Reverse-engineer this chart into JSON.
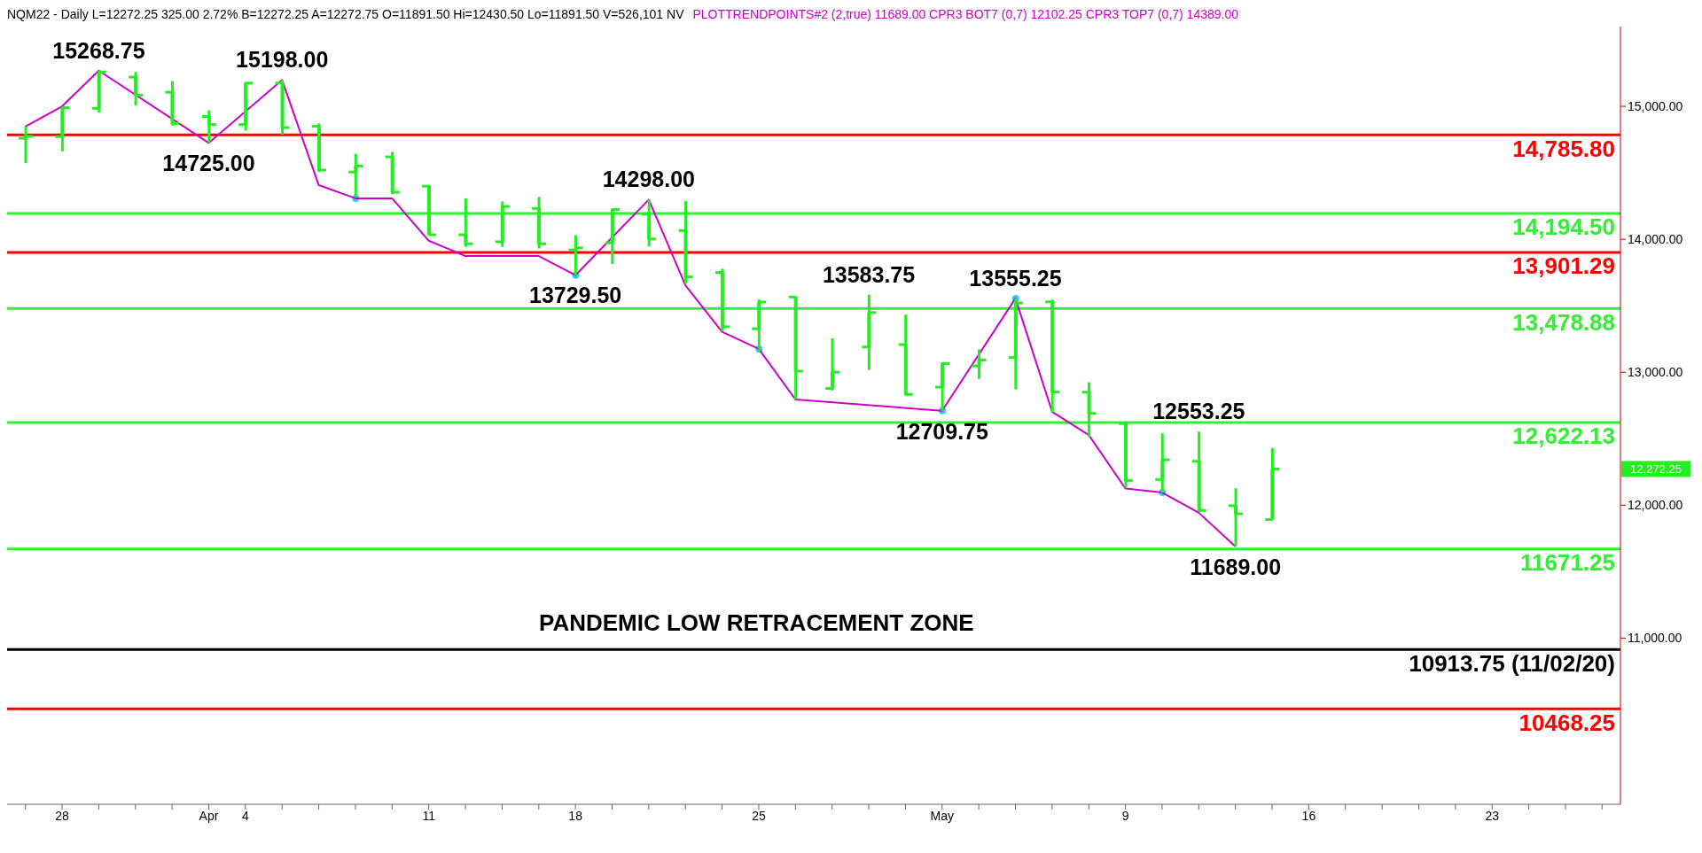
{
  "chart_data": {
    "type": "candlestick",
    "title": "NQM22 - Daily L=12272.25 325.00 2.72% B=12272.25 A=12272.75 O=11891.50 Hi=12430.50 Lo=11891.50 V=526,101 NV",
    "subtitle": "PLOTTRENDPOINTS#2 (2,true) 11689.00 CPR3 BOT7 (0,7) 12102.25 CPR3 TOP7 (0,7) 14389.00",
    "categories": [
      null,
      "28",
      null,
      null,
      null,
      "Apr",
      "4",
      null,
      null,
      null,
      null,
      "11",
      null,
      null,
      null,
      "18",
      null,
      null,
      null,
      null,
      "25",
      null,
      null,
      null,
      null,
      "May",
      null,
      null,
      null,
      null,
      "9",
      null,
      null,
      null,
      null,
      "16",
      null,
      null,
      null,
      null,
      "23",
      null,
      null,
      null
    ],
    "color": "#22ee22",
    "ohlc": [
      [
        14760,
        14848,
        14574,
        14775
      ],
      [
        14772,
        14997,
        14662,
        14990
      ],
      [
        14985,
        15268.75,
        14954,
        15259
      ],
      [
        15220,
        15259,
        15008,
        15084
      ],
      [
        15106,
        15190,
        14856,
        14871
      ],
      [
        14924,
        14970,
        14725,
        14863
      ],
      [
        14863,
        15183,
        14817,
        15175
      ],
      [
        15175,
        15198,
        14787,
        14840
      ],
      [
        14850,
        14871,
        14506,
        14521
      ],
      [
        14506,
        14643,
        14323,
        14551
      ],
      [
        14620,
        14658,
        14338,
        14354
      ],
      [
        14400,
        14407,
        14027,
        14034
      ],
      [
        14034,
        14308,
        13943,
        13966
      ],
      [
        13981,
        14285,
        13943,
        14247
      ],
      [
        14232,
        14319,
        13931,
        13966
      ],
      [
        13920,
        14030,
        13729.5,
        13936
      ],
      [
        13973,
        14232,
        13814,
        14224
      ],
      [
        14188,
        14298,
        13946,
        14002
      ],
      [
        14065,
        14288,
        13669,
        13717
      ],
      [
        13750,
        13778,
        13307,
        13342
      ],
      [
        13327,
        13547,
        13155,
        13528
      ],
      [
        13566,
        13570,
        12798,
        13008
      ],
      [
        12878,
        13255,
        12863,
        13000
      ],
      [
        13190,
        13583.75,
        13018,
        13449
      ],
      [
        13208,
        13433,
        12825,
        12833
      ],
      [
        12888,
        13076,
        12709.75,
        13065
      ],
      [
        13048,
        13172,
        12950,
        13092
      ],
      [
        13111,
        13555.25,
        12871,
        13521
      ],
      [
        13529,
        13545,
        12698,
        12851
      ],
      [
        12850,
        12924,
        12513,
        12690
      ],
      [
        12614,
        12627,
        12133,
        12186
      ],
      [
        12193,
        12540,
        12095,
        12341
      ],
      [
        12330,
        12553.25,
        11950,
        11960
      ],
      [
        11996,
        12127,
        11689,
        11935
      ],
      [
        11891.5,
        12430.5,
        11891.5,
        12272.25
      ],
      null,
      null,
      null,
      null,
      null,
      null,
      null,
      null,
      null
    ],
    "series": [
      {
        "type": "line",
        "color": "#cc00cc",
        "values": [
          14848,
          15000,
          15268.75,
          null,
          null,
          14725,
          null,
          15198,
          14407,
          14308,
          14308,
          13989,
          13874,
          null,
          13874,
          13729.5,
          null,
          14298,
          13654,
          13304,
          13175,
          12795,
          null,
          null,
          null,
          12709.75,
          null,
          13555.25,
          12703,
          12528,
          12125,
          12095,
          11943,
          11689,
          null,
          null,
          null,
          null,
          null,
          null,
          null,
          null,
          null,
          null
        ]
      },
      {
        "type": "scatter",
        "color": "#33ccff",
        "values": [
          null,
          null,
          null,
          null,
          null,
          null,
          null,
          null,
          null,
          14308,
          null,
          null,
          null,
          null,
          null,
          13729.5,
          null,
          null,
          null,
          null,
          13175,
          null,
          null,
          null,
          null,
          12709.75,
          null,
          13555.25,
          null,
          null,
          null,
          12095,
          null,
          null,
          null,
          null,
          null,
          null,
          null,
          null,
          null,
          null,
          null,
          null
        ]
      }
    ],
    "ylim": [
      9750,
      15600
    ],
    "yticks": [
      {
        "value": 11000,
        "label": "11,000.00"
      },
      {
        "value": 12000,
        "label": "12,000.00"
      },
      {
        "value": 13000,
        "label": "13,000.00"
      },
      {
        "value": 14000,
        "label": "14,000.00"
      },
      {
        "value": 15000,
        "label": "15,000.00"
      }
    ],
    "ref_lines": [
      {
        "axis": "y",
        "value": 14785.8,
        "label": "14,785.80",
        "color": "#ff0000"
      },
      {
        "axis": "y",
        "value": 14194.5,
        "label": "14,194.50",
        "color": "#33ee33"
      },
      {
        "axis": "y",
        "value": 13901.29,
        "label": "13,901.29",
        "color": "#ff0000"
      },
      {
        "axis": "y",
        "value": 13478.88,
        "label": "13,478.88",
        "color": "#33ee33"
      },
      {
        "axis": "y",
        "value": 12622.13,
        "label": "12,622.13",
        "color": "#33ee33"
      },
      {
        "axis": "y",
        "value": 11671.25,
        "label": "11671.25",
        "color": "#33ee33"
      },
      {
        "axis": "y",
        "value": 10913.75,
        "label": "10913.75 (11/02/20)",
        "color": "#000000"
      },
      {
        "axis": "y",
        "value": 10468.25,
        "label": "10468.25",
        "color": "#ff0000"
      }
    ],
    "annotations": [
      {
        "text": "15268.75",
        "y": 15268.75
      },
      {
        "text": "14725.00",
        "y": 14725
      },
      {
        "text": "15198.00",
        "y": 15198
      },
      {
        "text": "14298.00",
        "y": 14298
      },
      {
        "text": "13729.50",
        "y": 13729.5
      },
      {
        "text": "13583.75",
        "y": 13583.75
      },
      {
        "text": "12709.75",
        "y": 12709.75
      },
      {
        "text": "13555.25",
        "y": 13555.25
      },
      {
        "text": "12553.25",
        "y": 12553.25
      },
      {
        "text": "11689.00",
        "y": 11689
      },
      "12,272.25",
      "PANDEMIC LOW RETRACEMENT ZONE"
    ],
    "grid": false,
    "legend": false
  }
}
